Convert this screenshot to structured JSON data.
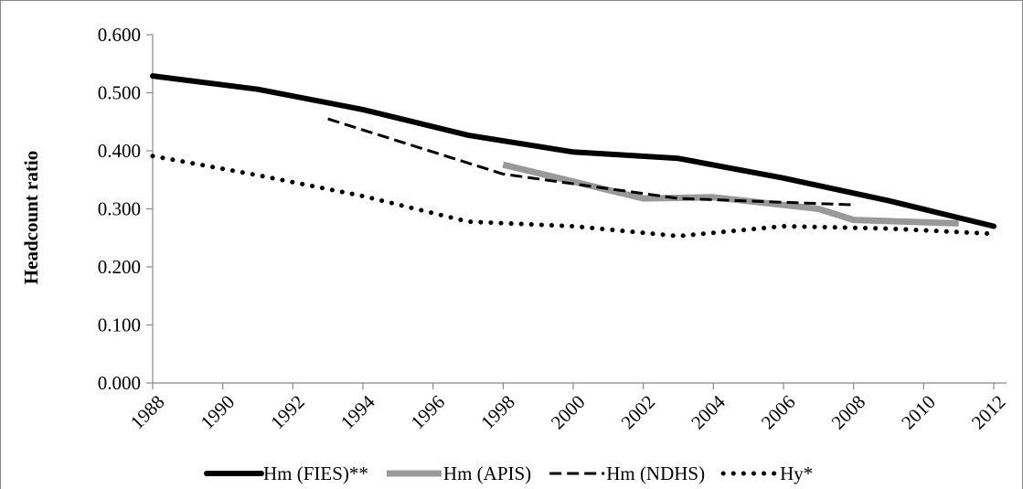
{
  "chart_data": {
    "type": "line",
    "title": "",
    "xlabel": "",
    "ylabel": "Headcount ratio",
    "x_ticks": [
      "1988",
      "1990",
      "1992",
      "1994",
      "1996",
      "1998",
      "2000",
      "2002",
      "2004",
      "2006",
      "2008",
      "2010",
      "2012"
    ],
    "y_ticks": [
      "0.000",
      "0.100",
      "0.200",
      "0.300",
      "0.400",
      "0.500",
      "0.600"
    ],
    "xlim": [
      1988,
      2012
    ],
    "ylim": [
      0,
      0.6
    ],
    "grid": false,
    "legend_position": "bottom",
    "series": [
      {
        "name": "Hm (FIES)**",
        "style": "solid-thick",
        "color": "#000000",
        "x": [
          1988,
          1991,
          1994,
          1997,
          2000,
          2003,
          2006,
          2009,
          2012
        ],
        "y": [
          0.529,
          0.506,
          0.471,
          0.427,
          0.398,
          0.387,
          0.353,
          0.314,
          0.27
        ]
      },
      {
        "name": "Hm (APIS)",
        "style": "solid-gray",
        "color": "#999999",
        "x": [
          1998,
          2002,
          2004,
          2007,
          2008,
          2011
        ],
        "y": [
          0.376,
          0.318,
          0.32,
          0.3,
          0.281,
          0.275
        ]
      },
      {
        "name": "Hm (NDHS)",
        "style": "dashed",
        "color": "#000000",
        "x": [
          1993,
          1998,
          2003,
          2008
        ],
        "y": [
          0.455,
          0.36,
          0.318,
          0.307
        ]
      },
      {
        "name": "Hy*",
        "style": "dotted",
        "color": "#000000",
        "x": [
          1988,
          1991,
          1994,
          1997,
          2000,
          2003,
          2006,
          2009,
          2012
        ],
        "y": [
          0.391,
          0.358,
          0.322,
          0.278,
          0.27,
          0.253,
          0.27,
          0.266,
          0.257
        ]
      }
    ]
  }
}
